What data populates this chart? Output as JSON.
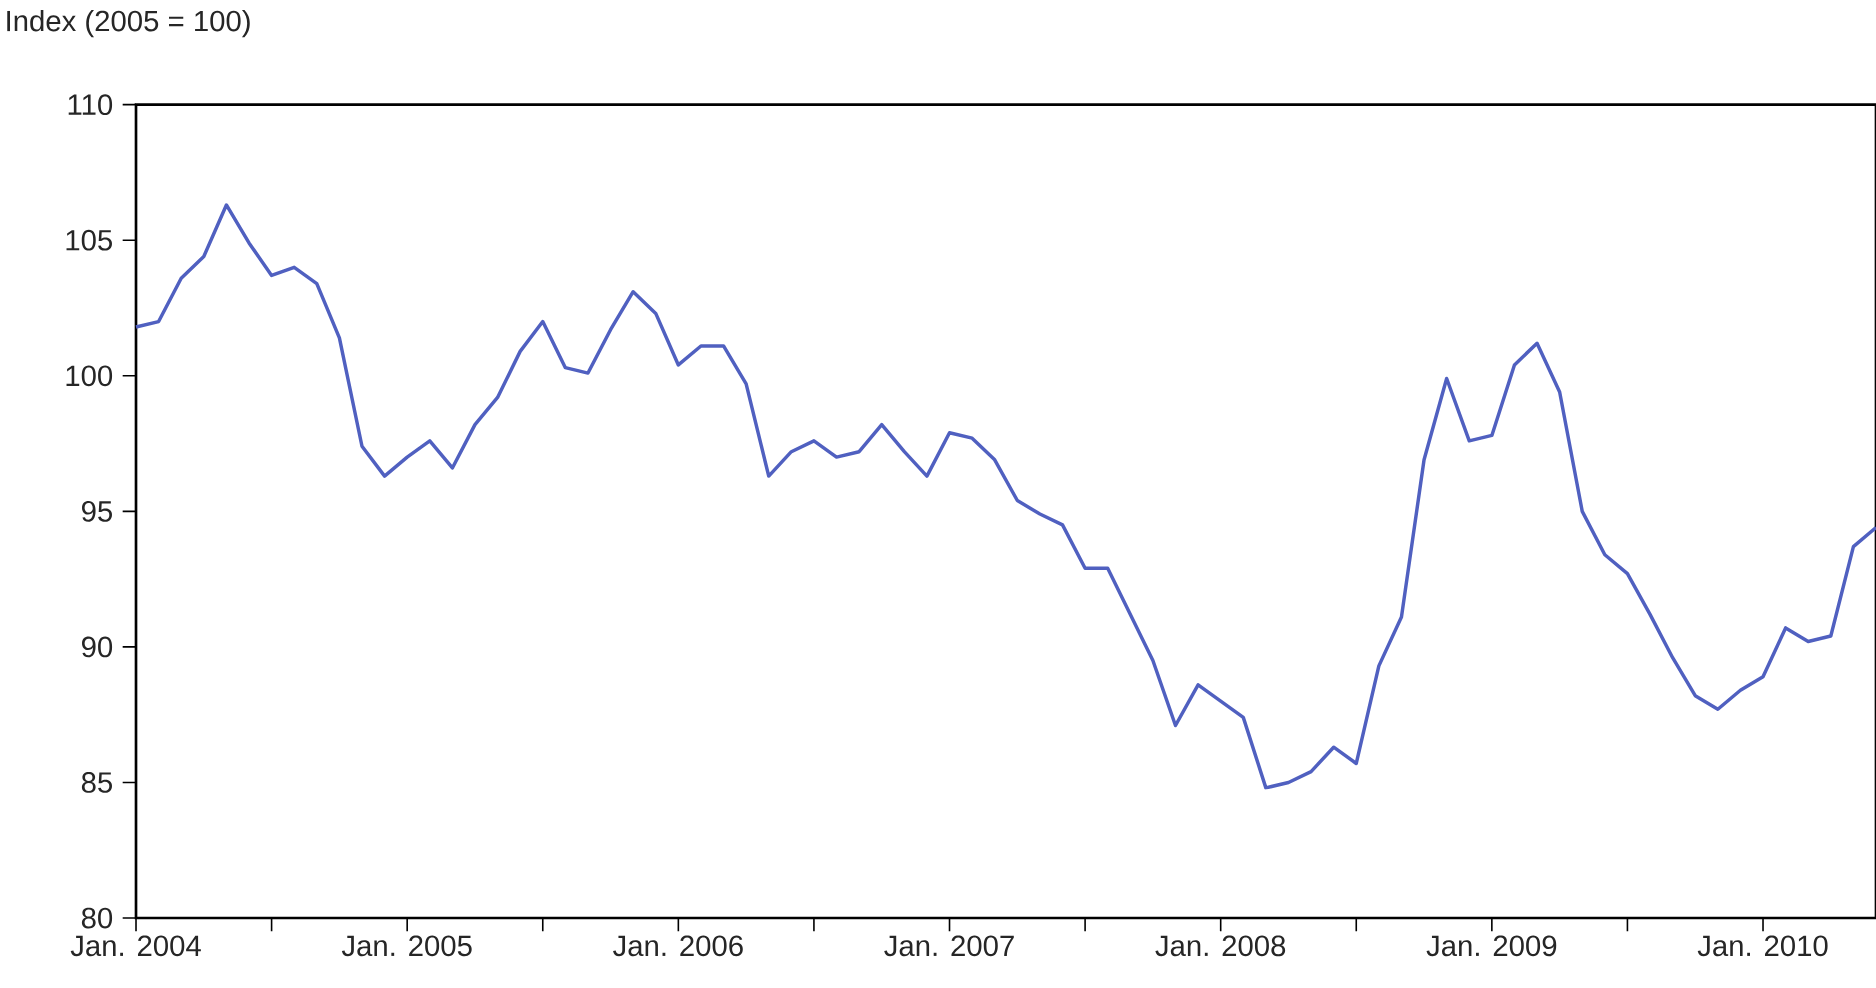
{
  "chart_data": {
    "type": "line",
    "ylabel": "Index (2005 = 100)",
    "x": [
      "2004-01",
      "2004-02",
      "2004-03",
      "2004-04",
      "2004-05",
      "2004-06",
      "2004-07",
      "2004-08",
      "2004-09",
      "2004-10",
      "2004-11",
      "2004-12",
      "2005-01",
      "2005-02",
      "2005-03",
      "2005-04",
      "2005-05",
      "2005-06",
      "2005-07",
      "2005-08",
      "2005-09",
      "2005-10",
      "2005-11",
      "2005-12",
      "2006-01",
      "2006-02",
      "2006-03",
      "2006-04",
      "2006-05",
      "2006-06",
      "2006-07",
      "2006-08",
      "2006-09",
      "2006-10",
      "2006-11",
      "2006-12",
      "2007-01",
      "2007-02",
      "2007-03",
      "2007-04",
      "2007-05",
      "2007-06",
      "2007-07",
      "2007-08",
      "2007-09",
      "2007-10",
      "2007-11",
      "2007-12",
      "2008-01",
      "2008-02",
      "2008-03",
      "2008-04",
      "2008-05",
      "2008-06",
      "2008-07",
      "2008-08",
      "2008-09",
      "2008-10",
      "2008-11",
      "2008-12",
      "2009-01",
      "2009-02",
      "2009-03",
      "2009-04",
      "2009-05",
      "2009-06",
      "2009-07",
      "2009-08",
      "2009-09",
      "2009-10",
      "2009-11",
      "2009-12",
      "2010-01",
      "2010-02",
      "2010-03",
      "2010-04",
      "2010-05",
      "2010-06"
    ],
    "series": [
      {
        "color": "#5060c0",
        "values": [
          101.8,
          102.0,
          103.6,
          104.4,
          106.3,
          104.9,
          103.7,
          104.0,
          103.4,
          101.4,
          97.4,
          96.3,
          97.0,
          97.6,
          96.6,
          98.2,
          99.2,
          100.9,
          102.0,
          100.3,
          100.1,
          101.7,
          103.1,
          102.3,
          100.4,
          101.1,
          101.1,
          99.7,
          96.3,
          97.2,
          97.6,
          97.0,
          97.2,
          98.2,
          97.2,
          96.3,
          97.9,
          97.7,
          96.9,
          95.4,
          94.9,
          94.5,
          92.9,
          92.9,
          91.2,
          89.5,
          87.1,
          88.6,
          88.0,
          87.4,
          84.8,
          85.0,
          85.4,
          86.3,
          85.7,
          89.3,
          91.1,
          96.9,
          99.9,
          97.6,
          97.8,
          100.4,
          101.2,
          99.4,
          95.0,
          93.4,
          92.7,
          91.2,
          89.6,
          88.2,
          87.7,
          88.4,
          88.9,
          90.7,
          90.2,
          90.4,
          93.7,
          94.4
        ]
      }
    ],
    "xlim": [
      "2004-01",
      "2010-06"
    ],
    "xticks": [
      {
        "value": "2004-01",
        "label": "Jan. 2004"
      },
      {
        "value": "2004-07",
        "label": null
      },
      {
        "value": "2005-01",
        "label": "Jan. 2005"
      },
      {
        "value": "2005-07",
        "label": null
      },
      {
        "value": "2006-01",
        "label": "Jan. 2006"
      },
      {
        "value": "2006-07",
        "label": null
      },
      {
        "value": "2007-01",
        "label": "Jan. 2007"
      },
      {
        "value": "2007-07",
        "label": null
      },
      {
        "value": "2008-01",
        "label": "Jan. 2008"
      },
      {
        "value": "2008-07",
        "label": null
      },
      {
        "value": "2009-01",
        "label": "Jan. 2009"
      },
      {
        "value": "2009-07",
        "label": null
      },
      {
        "value": "2010-01",
        "label": "Jan. 2010"
      }
    ],
    "ylim": [
      80,
      110
    ],
    "yticks": [
      80,
      85,
      90,
      95,
      100,
      105,
      110
    ],
    "grid": false,
    "marker": "none",
    "line_style": "solid"
  }
}
